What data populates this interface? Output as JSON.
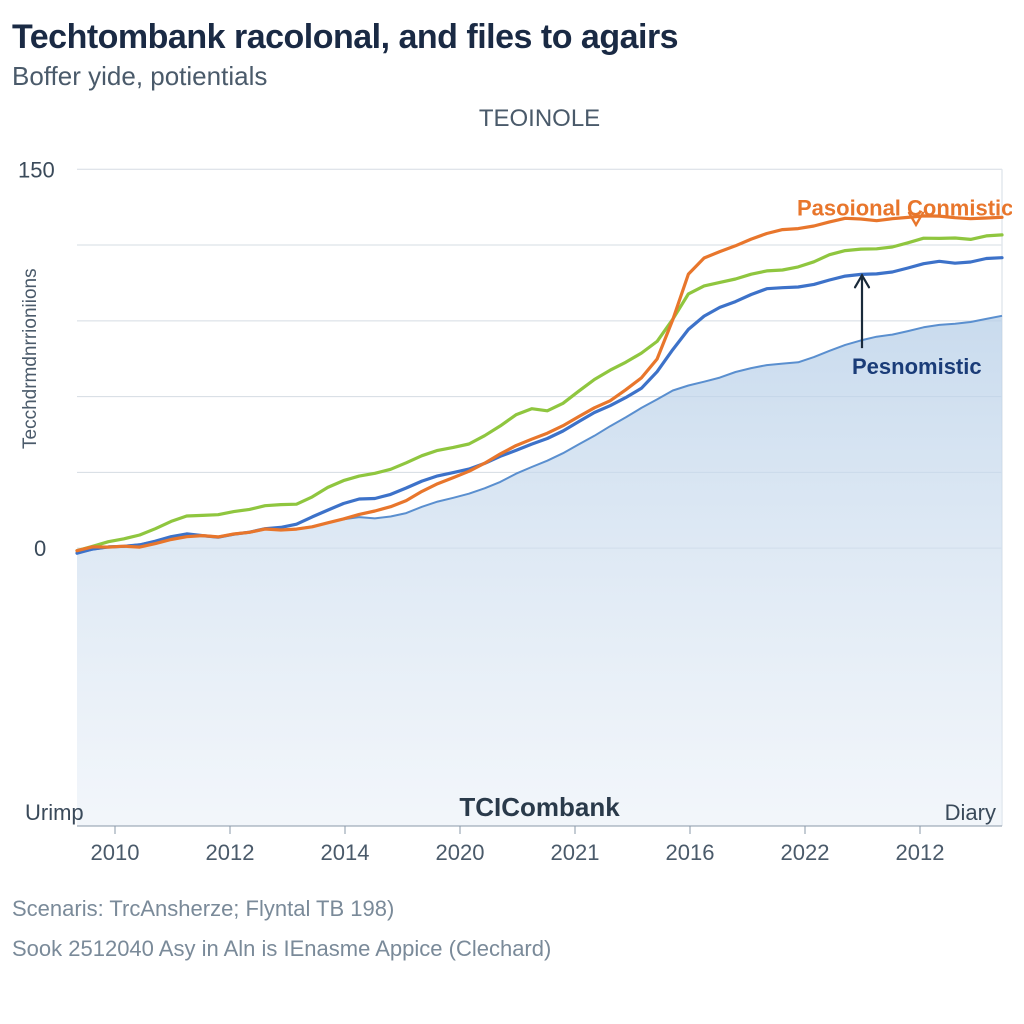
{
  "header": {
    "title": "Techtombank racolonal, and files to agairs",
    "subtitle": "Boffer yide, potientials",
    "chart_label": "TEOINOLE"
  },
  "axes": {
    "y_label": "Tecchdrmdnrrioniions",
    "y_ticks": [
      "0",
      "150"
    ],
    "y_tick_values": [
      0,
      150
    ],
    "x_ticks": [
      "2010",
      "2012",
      "2014",
      "2020",
      "2021",
      "2016",
      "2022",
      "2012"
    ],
    "x_left_label": "Urimp",
    "x_center_label": "TCICombank",
    "x_right_label": "Diary",
    "y_min": -110,
    "y_max": 160
  },
  "chart": {
    "background_color": "#ffffff",
    "grid_color": "#d5dce3",
    "area_fill_top": "#b7cfe8",
    "area_fill_bottom": "#e8eff7",
    "right_border_color": "#e3e8ee",
    "title_fontsize": 34,
    "subtitle_fontsize": 26,
    "axis_fontsize": 19,
    "tick_fontsize": 22,
    "line_width": 3.2,
    "n_points": 60
  },
  "series": {
    "area": {
      "color_line": "#5a8fcf",
      "values": [
        -2,
        -1,
        0,
        1,
        2,
        3,
        4,
        5,
        5,
        5,
        6,
        6,
        7,
        7,
        8,
        9,
        10,
        11,
        12,
        12,
        13,
        14,
        16,
        18,
        20,
        22,
        24,
        26,
        29,
        32,
        35,
        38,
        41,
        44,
        48,
        52,
        56,
        59,
        62,
        64,
        66,
        68,
        70,
        71,
        72,
        73,
        74,
        76,
        78,
        80,
        82,
        84,
        85,
        86,
        87,
        88,
        89,
        90,
        91,
        92
      ]
    },
    "blue_line": {
      "name": "Pesnomistic",
      "color": "#3d72c9",
      "label_color": "#1a3c78",
      "values": [
        -2,
        -1,
        0,
        1,
        2,
        3,
        4,
        5,
        5,
        5,
        6,
        6,
        7,
        8,
        10,
        13,
        15,
        17,
        19,
        20,
        22,
        24,
        26,
        28,
        30,
        32,
        34,
        36,
        38,
        41,
        44,
        47,
        50,
        53,
        56,
        60,
        64,
        70,
        78,
        86,
        92,
        96,
        98,
        100,
        102,
        103,
        104,
        105,
        106,
        107,
        108,
        109,
        110,
        111,
        112,
        113,
        113,
        114,
        115,
        115
      ]
    },
    "green_line": {
      "color": "#8fc63f",
      "values": [
        -1,
        0,
        2,
        4,
        6,
        8,
        10,
        12,
        13,
        14,
        15,
        15,
        16,
        17,
        18,
        21,
        24,
        26,
        28,
        30,
        32,
        34,
        36,
        38,
        40,
        42,
        45,
        48,
        52,
        55,
        55,
        58,
        62,
        66,
        70,
        74,
        78,
        82,
        90,
        100,
        104,
        106,
        107,
        108,
        109,
        110,
        112,
        114,
        116,
        117,
        118,
        119,
        120,
        121,
        122,
        122,
        123,
        123,
        124,
        124
      ]
    },
    "orange_line": {
      "name": "Pasoional Conmistic",
      "color": "#e8762c",
      "values": [
        -1,
        0,
        0,
        1,
        1,
        2,
        3,
        4,
        5,
        5,
        6,
        6,
        7,
        7,
        8,
        9,
        10,
        11,
        13,
        15,
        17,
        19,
        22,
        25,
        28,
        31,
        34,
        37,
        40,
        43,
        46,
        49,
        52,
        55,
        58,
        63,
        68,
        75,
        90,
        108,
        115,
        118,
        120,
        122,
        124,
        126,
        127,
        128,
        129,
        130,
        130,
        130,
        131,
        131,
        131,
        131,
        131,
        131,
        131,
        131
      ]
    }
  },
  "annotations": {
    "orange": {
      "text": "Pasoional Conmistic",
      "color": "#e8762c",
      "fontsize": 22,
      "fontweight": "700"
    },
    "blue": {
      "text": "Pesnomistic",
      "color": "#1a3c78",
      "fontsize": 22,
      "fontweight": "700"
    }
  },
  "footnotes": {
    "line1": "Scenaris: TrcAnsherze; Flyntal TB 198)",
    "line2": "Sook 2512040 Asy in Aln is IEnasme Appice (Clechard)"
  }
}
